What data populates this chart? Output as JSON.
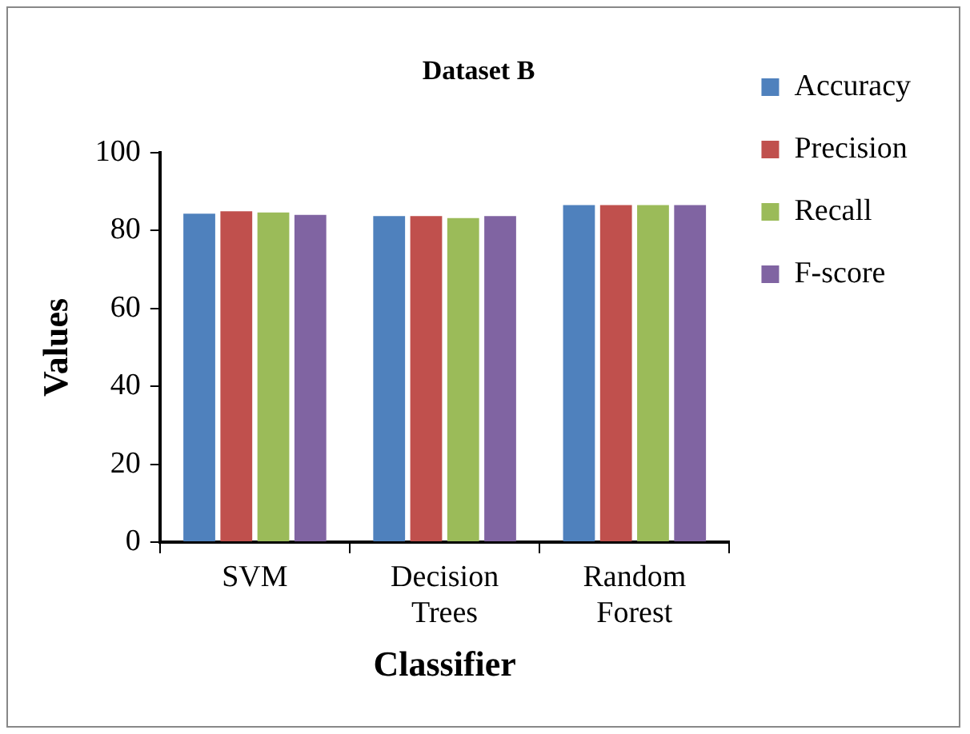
{
  "chart_data": {
    "type": "bar",
    "title": "Dataset B",
    "xlabel": "Classifier",
    "ylabel": "Values",
    "categories": [
      "SVM",
      "Decision Trees",
      "Random Forest"
    ],
    "series": [
      {
        "name": "Accuracy",
        "color": "#4f81bd",
        "values": [
          84.3,
          83.7,
          86.5
        ]
      },
      {
        "name": "Precision",
        "color": "#c0504d",
        "values": [
          84.9,
          83.7,
          86.5
        ]
      },
      {
        "name": "Recall",
        "color": "#9bbb59",
        "values": [
          84.6,
          83.2,
          86.5
        ]
      },
      {
        "name": "F-score",
        "color": "#8064a2",
        "values": [
          84.0,
          83.7,
          86.5
        ]
      }
    ],
    "ylim": [
      0,
      100
    ],
    "yticks": [
      0,
      20,
      40,
      60,
      80,
      100
    ],
    "grid": false,
    "legend": "right"
  }
}
